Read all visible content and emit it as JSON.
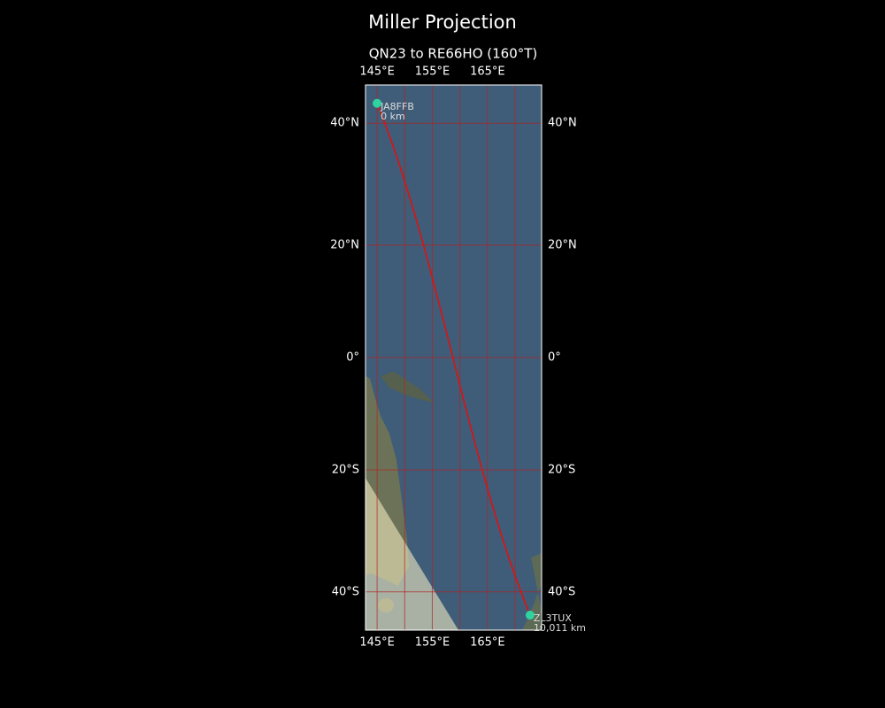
{
  "map": {
    "title": "Miller Projection",
    "subtitle": "QN23 to RE66HO (160°T)",
    "xlim": [
      142.9,
      174.8
    ],
    "ylim": [
      -45.7,
      45.7
    ],
    "xticks": [
      {
        "value": 145,
        "label": "145°E"
      },
      {
        "value": 155,
        "label": "155°E"
      },
      {
        "value": 165,
        "label": "165°E"
      }
    ],
    "yticks": [
      {
        "value": -40,
        "label": "40°S"
      },
      {
        "value": -20,
        "label": "20°S"
      },
      {
        "value": 0,
        "label": "0°"
      },
      {
        "value": 20,
        "label": "20°N"
      },
      {
        "value": 40,
        "label": "40°N"
      }
    ],
    "meridians": [
      145,
      150,
      155,
      160,
      165,
      170
    ],
    "grid_color": "#b22222",
    "path_color": "#e01010",
    "marker_color": "#2ed3a0",
    "stations": [
      {
        "call": "JA8FFB",
        "distance": "0 km",
        "lon": 145.0,
        "lat": 43.0
      },
      {
        "call": "ZL3TUX",
        "distance": "10,011 km",
        "lon": 172.7,
        "lat": -43.5
      }
    ]
  }
}
